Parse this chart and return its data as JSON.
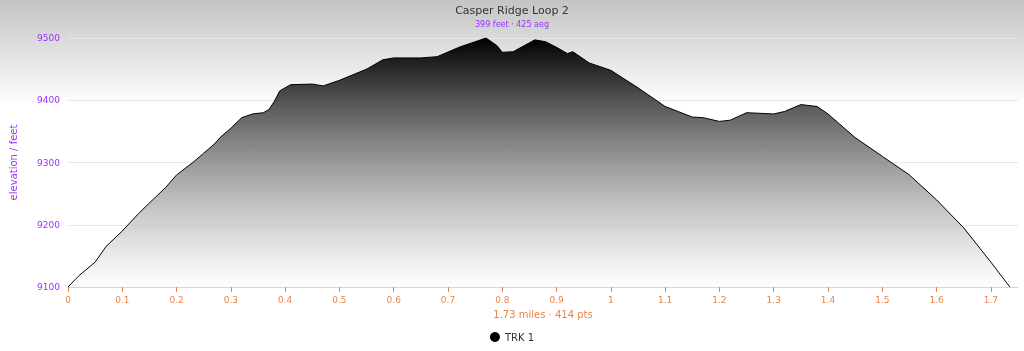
{
  "chart_data": {
    "type": "area",
    "title": "Casper Ridge Loop 2",
    "subtitle": "399 feet · 425 aeg",
    "xlabel": "1.73 miles · 414 pts",
    "ylabel": "elevation / feet",
    "x": [
      0,
      0.02,
      0.05,
      0.07,
      0.1,
      0.13,
      0.15,
      0.18,
      0.2,
      0.23,
      0.25,
      0.27,
      0.28,
      0.3,
      0.32,
      0.34,
      0.36,
      0.37,
      0.38,
      0.39,
      0.41,
      0.45,
      0.47,
      0.5,
      0.55,
      0.58,
      0.6,
      0.65,
      0.68,
      0.72,
      0.77,
      0.79,
      0.8,
      0.82,
      0.86,
      0.88,
      0.9,
      0.92,
      0.93,
      0.96,
      1.0,
      1.05,
      1.1,
      1.15,
      1.17,
      1.2,
      1.22,
      1.25,
      1.3,
      1.32,
      1.35,
      1.38,
      1.4,
      1.45,
      1.5,
      1.55,
      1.6,
      1.65,
      1.7,
      1.735
    ],
    "series": [
      {
        "name": "TRK 1",
        "color": "#000000",
        "values": [
          9100,
          9118,
          9140,
          9165,
          9190,
          9218,
          9235,
          9260,
          9280,
          9300,
          9315,
          9330,
          9340,
          9355,
          9372,
          9378,
          9380,
          9385,
          9398,
          9415,
          9425,
          9426,
          9423,
          9432,
          9450,
          9465,
          9468,
          9468,
          9470,
          9485,
          9500,
          9488,
          9477,
          9478,
          9497,
          9494,
          9485,
          9475,
          9478,
          9460,
          9448,
          9420,
          9390,
          9373,
          9372,
          9366,
          9368,
          9380,
          9378,
          9382,
          9393,
          9390,
          9378,
          9340,
          9310,
          9280,
          9240,
          9195,
          9140,
          9100
        ]
      }
    ],
    "xlim": [
      0,
      1.75
    ],
    "xticks": [
      0,
      0.1,
      0.2,
      0.3,
      0.4,
      0.5,
      0.6,
      0.7,
      0.8,
      0.9,
      1,
      1.1,
      1.2,
      1.3,
      1.4,
      1.5,
      1.6,
      1.7
    ],
    "ylim": [
      9100,
      9500
    ],
    "yticks": [
      9100,
      9200,
      9300,
      9400,
      9500
    ],
    "grid": "y",
    "legend": "bottom",
    "marker": "none",
    "line_style": "solid"
  }
}
